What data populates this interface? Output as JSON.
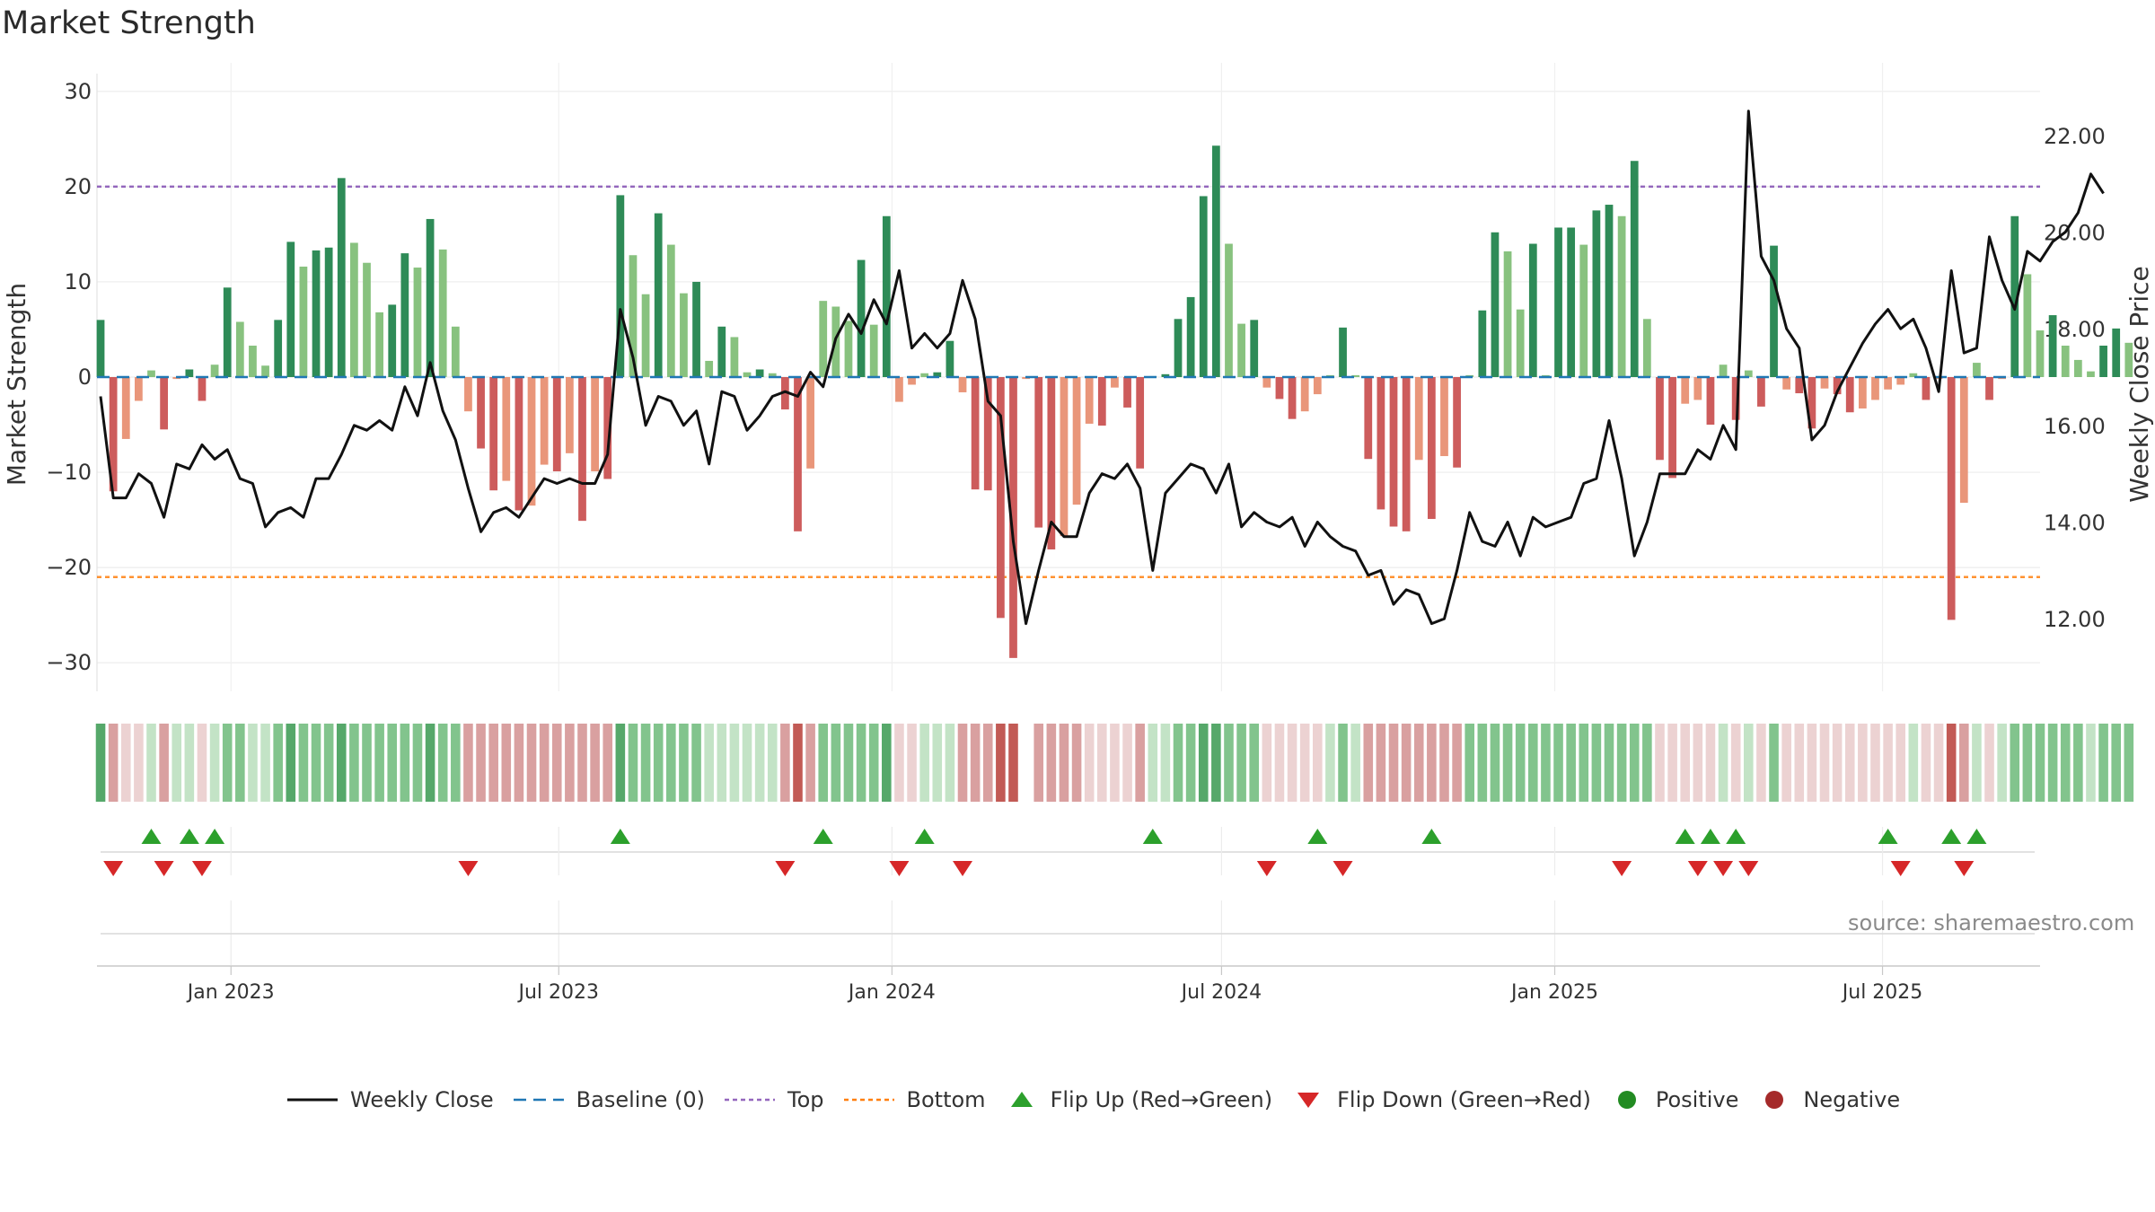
{
  "title": "Market Strength",
  "source": "source: sharemaestro.com",
  "colors": {
    "pos_dark": "#2e8b57",
    "pos_light": "#88c27f",
    "neg_dark": "#cd5c5c",
    "neg_light": "#e9967a",
    "close": "#111111",
    "baseline": "#1f77b4",
    "top": "#9467bd",
    "bottom": "#ff7f0e",
    "flip_up": "#2ca02c",
    "flip_down": "#d62728",
    "positive": "#228b22",
    "negative": "#a52a2a"
  },
  "chart_data": {
    "type": "bar",
    "x_start": "2022-10-21",
    "x_step_days": 7,
    "xlim": [
      "2022-10-19",
      "2025-09-26"
    ],
    "xticks": [
      "Jan 2023",
      "Jul 2023",
      "Jan 2024",
      "Jul 2024",
      "Jan 2025",
      "Jul 2025"
    ],
    "xtick_dates": [
      "2023-01-01",
      "2023-07-01",
      "2024-01-01",
      "2024-07-01",
      "2025-01-01",
      "2025-07-01"
    ],
    "ylabel": "Market Strength",
    "ylim": [
      -33,
      33
    ],
    "yticks": [
      30,
      20,
      10,
      0,
      -10,
      -20,
      -30
    ],
    "ytick_labels": [
      "30",
      "20",
      "10",
      "0",
      "−10",
      "−20",
      "−30"
    ],
    "y2label": "Weekly Close Price",
    "y2lim": [
      10.5,
      23.5
    ],
    "y2ticks": [
      12,
      14,
      16,
      18,
      20,
      22
    ],
    "y2tick_labels": [
      "12.00",
      "14.00",
      "16.00",
      "18.00",
      "20.00",
      "22.00"
    ],
    "top_level": 20,
    "bottom_level": -21,
    "strength": [
      6,
      -12,
      -6.5,
      -2.5,
      0.7,
      -5.5,
      -0.2,
      0.8,
      -2.5,
      1.3,
      9.4,
      5.8,
      3.3,
      1.2,
      6,
      14.2,
      11.6,
      13.3,
      13.6,
      20.9,
      14.1,
      12,
      6.8,
      7.6,
      13,
      11.5,
      16.6,
      13.4,
      5.3,
      -3.6,
      -7.5,
      -11.9,
      -10.9,
      -14,
      -13.5,
      -9.2,
      -9.9,
      -8,
      -15.1,
      -9.9,
      -10.7,
      19.1,
      12.8,
      8.7,
      17.2,
      13.9,
      8.8,
      10,
      1.7,
      5.3,
      4.2,
      0.5,
      0.8,
      0.4,
      -3.4,
      -16.2,
      -9.6,
      8,
      7.4,
      5.9,
      12.3,
      5.5,
      16.9,
      -2.6,
      -0.8,
      0.4,
      0.5,
      3.8,
      -1.6,
      -11.8,
      -11.9,
      -25.3,
      -29.5,
      -0.2,
      -15.8,
      -18.1,
      -16.7,
      -13.4,
      -4.9,
      -5.1,
      -1.1,
      -3.2,
      -9.6,
      0.1,
      0.3,
      6.1,
      8.4,
      19,
      24.3,
      14,
      5.6,
      6,
      -1.1,
      -2.3,
      -4.4,
      -3.6,
      -1.8,
      0.2,
      5.2,
      0.2,
      -8.6,
      -13.9,
      -15.7,
      -16.2,
      -8.7,
      -14.9,
      -8.3,
      -9.5,
      0.2,
      7,
      15.2,
      13.2,
      7.1,
      14,
      0.2,
      15.7,
      15.7,
      13.9,
      17.5,
      18.1,
      16.9,
      22.7,
      6.1,
      -8.7,
      -10.6,
      -2.8,
      -2.4,
      -5,
      1.3,
      -4.5,
      0.7,
      -3.1,
      13.8,
      -1.3,
      -1.7,
      -5.4,
      -1.2,
      -1.8,
      -3.7,
      -3.3,
      -2.4,
      -1.3,
      -0.8,
      0.4,
      -2.4,
      -0.2,
      -25.5,
      -13.2,
      1.5,
      -2.4,
      -0.2,
      16.9,
      10.8,
      4.9,
      6.5,
      3.3,
      1.8,
      0.6,
      3.3,
      5.1,
      3.6
    ],
    "series": [
      {
        "name": "Weekly Close",
        "axis": "right",
        "values": [
          16.6,
          14.5,
          14.5,
          15.0,
          14.8,
          14.1,
          15.2,
          15.1,
          15.6,
          15.3,
          15.5,
          14.9,
          14.8,
          13.9,
          14.2,
          14.3,
          14.1,
          14.9,
          14.9,
          15.4,
          16.0,
          15.9,
          16.1,
          15.9,
          16.8,
          16.2,
          17.3,
          16.3,
          15.7,
          14.7,
          13.8,
          14.2,
          14.3,
          14.1,
          14.5,
          14.9,
          14.8,
          14.9,
          14.8,
          14.8,
          15.4,
          18.4,
          17.4,
          16.0,
          16.6,
          16.5,
          16.0,
          16.3,
          15.2,
          16.7,
          16.6,
          15.9,
          16.2,
          16.6,
          16.7,
          16.6,
          17.1,
          16.8,
          17.8,
          18.3,
          17.9,
          18.6,
          18.1,
          19.2,
          17.6,
          17.9,
          17.6,
          17.9,
          19.0,
          18.2,
          16.5,
          16.2,
          13.6,
          11.9,
          13.0,
          14.0,
          13.7,
          13.7,
          14.6,
          15.0,
          14.9,
          15.2,
          14.7,
          13.0,
          14.6,
          14.9,
          15.2,
          15.1,
          14.6,
          15.2,
          13.9,
          14.2,
          14.0,
          13.9,
          14.1,
          13.5,
          14.0,
          13.7,
          13.5,
          13.4,
          12.9,
          13.0,
          12.3,
          12.6,
          12.5,
          11.9,
          12.0,
          13.0,
          14.2,
          13.6,
          13.5,
          14.0,
          13.3,
          14.1,
          13.9,
          14.0,
          14.1,
          14.8,
          14.9,
          16.1,
          14.9,
          13.3,
          14.0,
          15.0,
          15.0,
          15.0,
          15.5,
          15.3,
          16.0,
          15.5,
          22.5,
          19.5,
          19.0,
          18.0,
          17.6,
          15.7,
          16.0,
          16.7,
          17.2,
          17.7,
          18.1,
          18.4,
          18.0,
          18.2,
          17.6,
          16.7,
          19.2,
          17.5,
          17.6,
          19.9,
          19.0,
          18.4,
          19.6,
          19.4,
          19.8,
          20.0,
          20.4,
          21.2,
          20.8
        ]
      }
    ],
    "strip_levels": [
      3,
      -2,
      -1,
      -1,
      1,
      -2,
      1,
      1,
      -1,
      1,
      2,
      2,
      1,
      1,
      2,
      3,
      2,
      2,
      2,
      3,
      2,
      2,
      2,
      2,
      2,
      2,
      3,
      2,
      2,
      -2,
      -2,
      -2,
      -2,
      -2,
      -2,
      -2,
      -2,
      -2,
      -2,
      -2,
      -2,
      3,
      2,
      2,
      2,
      2,
      2,
      2,
      1,
      1,
      1,
      1,
      1,
      1,
      -2,
      -3,
      -2,
      2,
      2,
      2,
      2,
      2,
      3,
      -1,
      -1,
      1,
      1,
      1,
      -2,
      -2,
      -2,
      -3,
      -3,
      0,
      -2,
      -2,
      -2,
      -2,
      -1,
      -1,
      -1,
      -1,
      -2,
      1,
      1,
      2,
      2,
      3,
      3,
      2,
      2,
      2,
      -1,
      -1,
      -1,
      -1,
      -1,
      1,
      2,
      1,
      -2,
      -2,
      -2,
      -2,
      -2,
      -2,
      -2,
      -2,
      2,
      2,
      2,
      2,
      2,
      2,
      2,
      2,
      2,
      2,
      2,
      2,
      2,
      2,
      2,
      -1,
      -1,
      -1,
      -1,
      -1,
      1,
      -1,
      1,
      -1,
      2,
      -1,
      -1,
      -1,
      -1,
      -1,
      -1,
      -1,
      -1,
      -1,
      -1,
      1,
      -1,
      -1,
      -3,
      -2,
      1,
      -1,
      1,
      2,
      2,
      2,
      2,
      2,
      2,
      1,
      2,
      2,
      2
    ],
    "flip_up_weeks": [
      4,
      7,
      9,
      41,
      57,
      65,
      83,
      96,
      105,
      125,
      127,
      129,
      141,
      146,
      148
    ],
    "flip_down_weeks": [
      1,
      5,
      8,
      29,
      54,
      63,
      68,
      92,
      98,
      120,
      126,
      128,
      130,
      142,
      147
    ],
    "legend": [
      "Weekly Close",
      "Baseline (0)",
      "Top",
      "Bottom",
      "Flip Up (Red→Green)",
      "Flip Down (Green→Red)",
      "Positive",
      "Negative"
    ]
  }
}
